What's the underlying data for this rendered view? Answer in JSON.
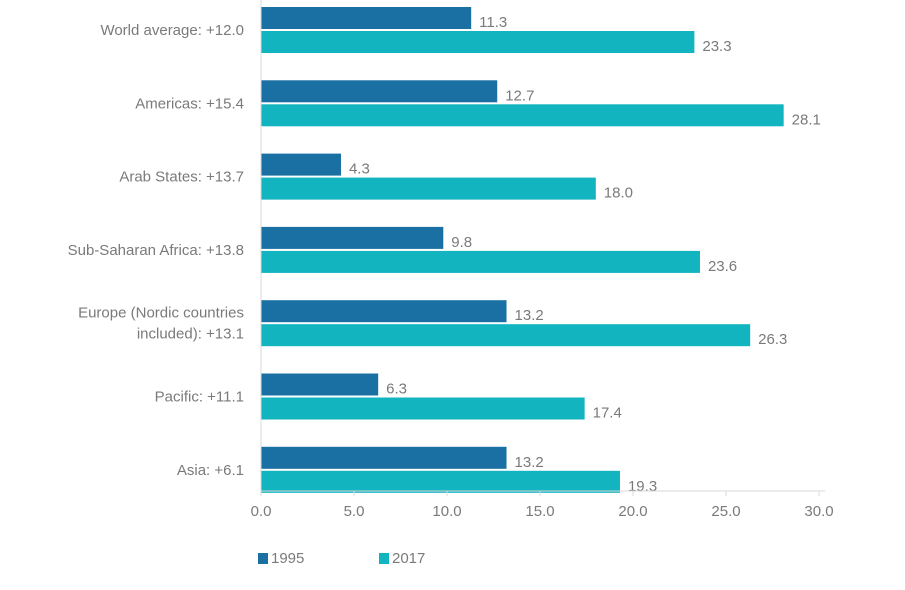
{
  "chart_data": {
    "type": "bar",
    "orientation": "horizontal",
    "categories": [
      [
        "World average: +12.0"
      ],
      [
        "Americas: +15.4"
      ],
      [
        "Arab States: +13.7"
      ],
      [
        "Sub-Saharan Africa: +13.8"
      ],
      [
        "Europe (Nordic countries",
        "included): +13.1"
      ],
      [
        "Pacific: +11.1"
      ],
      [
        "Asia: +6.1"
      ]
    ],
    "series": [
      {
        "name": "1995",
        "color": "#1a6fa3",
        "values": [
          11.3,
          12.7,
          4.3,
          9.8,
          13.2,
          6.3,
          13.2
        ]
      },
      {
        "name": "2017",
        "color": "#12b4bf",
        "values": [
          23.3,
          28.1,
          18.0,
          23.6,
          26.3,
          17.4,
          19.3
        ]
      }
    ],
    "value_labels": [
      [
        "11.3",
        "12.7",
        "4.3",
        "9.8",
        "13.2",
        "6.3",
        "13.2"
      ],
      [
        "23.3",
        "28.1",
        "18.0",
        "23.6",
        "26.3",
        "17.4",
        "19.3"
      ]
    ],
    "xticks": [
      "0.0",
      "5.0",
      "10.0",
      "15.0",
      "20.0",
      "25.0",
      "30.0"
    ],
    "xlim": [
      0,
      30
    ],
    "title": "",
    "xlabel": "",
    "ylabel": "",
    "grid": false,
    "legend_position": "bottom-left"
  }
}
